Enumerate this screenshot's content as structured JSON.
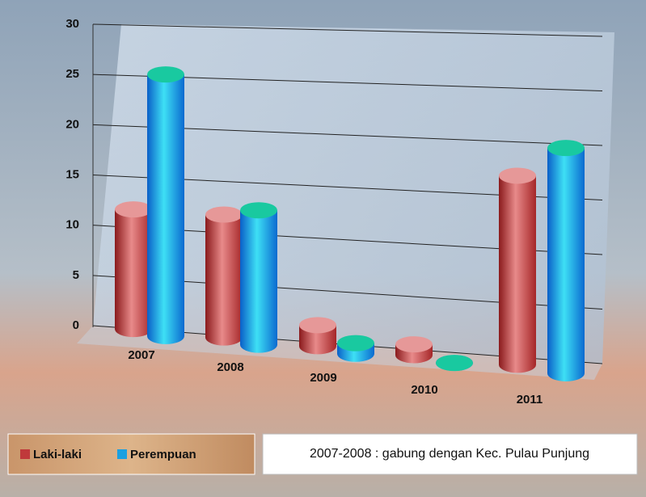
{
  "chart_data": {
    "type": "bar3d",
    "categories": [
      "2007",
      "2008",
      "2009",
      "2010",
      "2011"
    ],
    "series": [
      {
        "name": "Laki-laki",
        "color": "#c0393b",
        "values": [
          12,
          12,
          2,
          1,
          17
        ]
      },
      {
        "name": "Perempuan",
        "color": "#1aa0e0",
        "values": [
          26,
          13,
          1,
          0,
          20
        ]
      }
    ],
    "ylim": [
      0,
      30
    ],
    "yticks": [
      0,
      5,
      10,
      15,
      20,
      25,
      30
    ],
    "grid": true,
    "legend": "bottom-left",
    "annotation": "2007-2008 : gabung dengan Kec. Pulau Punjung"
  }
}
